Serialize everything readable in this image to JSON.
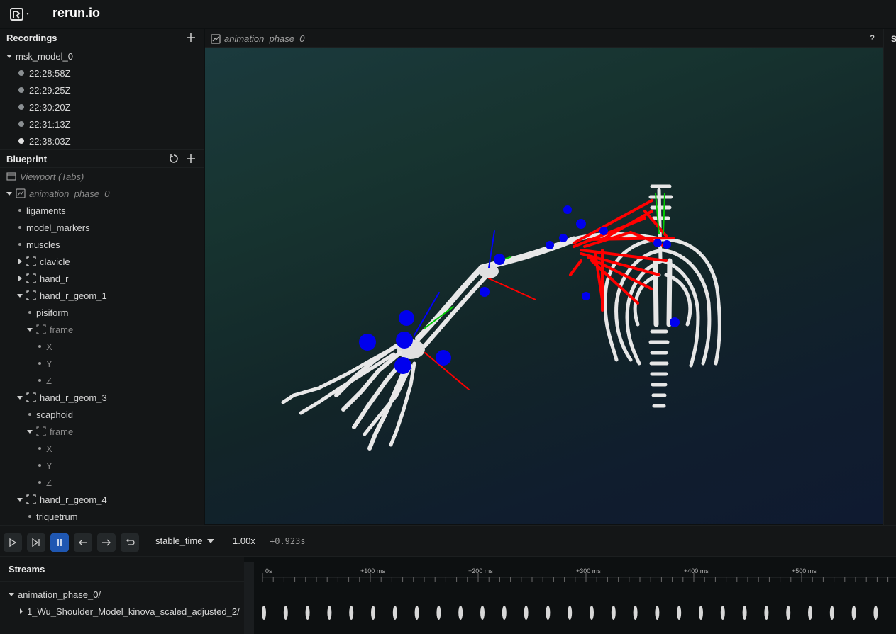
{
  "app": {
    "title": "rerun.io"
  },
  "recordings": {
    "header": "Recordings",
    "model": "msk_model_0",
    "items": [
      {
        "label": "22:28:58Z",
        "active": false
      },
      {
        "label": "22:29:25Z",
        "active": false
      },
      {
        "label": "22:30:20Z",
        "active": false
      },
      {
        "label": "22:31:13Z",
        "active": false
      },
      {
        "label": "22:38:03Z",
        "active": true
      }
    ]
  },
  "blueprint": {
    "header": "Blueprint",
    "viewport": "Viewport (Tabs)",
    "view": "animation_phase_0",
    "rows": [
      {
        "label": "ligaments"
      },
      {
        "label": "model_markers"
      },
      {
        "label": "muscles"
      },
      {
        "label": "clavicle"
      },
      {
        "label": "hand_r"
      },
      {
        "label": "hand_r_geom_1"
      },
      {
        "label": "pisiform"
      },
      {
        "label": "frame"
      },
      {
        "label": "X"
      },
      {
        "label": "Y"
      },
      {
        "label": "Z"
      },
      {
        "label": "hand_r_geom_3"
      },
      {
        "label": "scaphoid"
      },
      {
        "label": "frame"
      },
      {
        "label": "X"
      },
      {
        "label": "Y"
      },
      {
        "label": "Z"
      },
      {
        "label": "hand_r_geom_4"
      },
      {
        "label": "triquetrum"
      }
    ]
  },
  "view_tab": {
    "title": "animation_phase_0",
    "help": "?"
  },
  "right_strip": {
    "label": "S"
  },
  "transport": {
    "timeline": "stable_time",
    "speed": "1.00x",
    "time_offset": "+0.923s"
  },
  "streams": {
    "header": "Streams",
    "root": "animation_phase_0/",
    "child": "1_Wu_Shoulder_Model_kinova_scaled_adjusted_2/",
    "ticks": [
      "0s",
      "+100 ms",
      "+200 ms",
      "+300 ms",
      "+400 ms",
      "+500 ms"
    ]
  },
  "colors": {
    "accent": "#1f57b2",
    "muscle": "#ff0000",
    "marker": "#0000ee",
    "bone": "#e8e8e8"
  },
  "icons": [
    "rerun-logo-icon",
    "plus-icon",
    "reset-icon",
    "view-3d-icon",
    "viewport-icon",
    "entity-bracket-icon",
    "play-icon",
    "step-icon",
    "pause-icon",
    "arrow-left-icon",
    "arrow-right-icon",
    "loop-icon",
    "chevron-down-icon"
  ]
}
